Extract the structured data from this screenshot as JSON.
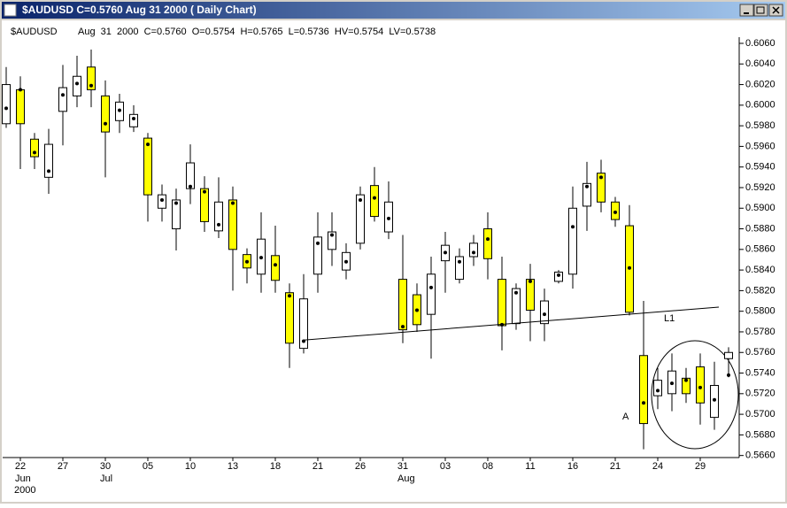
{
  "window": {
    "title": "$AUDUSD      C=0.5760 Aug  31  2000 (  Daily Chart)"
  },
  "chart_data": {
    "type": "candlestick",
    "symbol": "$AUDUSD",
    "info": "Aug  31  2000  C=0.5760  O=0.5754  H=0.5765  L=0.5736  HV=0.5754  LV=0.5738",
    "categories": [
      null,
      "22",
      null,
      null,
      "27",
      null,
      null,
      "30",
      null,
      null,
      "05",
      null,
      null,
      "10",
      null,
      null,
      "13",
      null,
      null,
      "18",
      null,
      null,
      "21",
      null,
      null,
      "26",
      null,
      null,
      "31",
      null,
      null,
      "03",
      null,
      null,
      "08",
      null,
      null,
      "11",
      null,
      null,
      "16",
      null,
      null,
      "21",
      null,
      null,
      "24",
      null,
      null,
      "29",
      null,
      null
    ],
    "x_sublabels": [
      null,
      "Jun",
      null,
      null,
      null,
      null,
      null,
      "Jul",
      null,
      null,
      null,
      null,
      null,
      null,
      null,
      null,
      null,
      null,
      null,
      null,
      null,
      null,
      null,
      null,
      null,
      null,
      null,
      null,
      "Aug",
      null,
      null,
      null,
      null,
      null,
      null,
      null,
      null,
      null,
      null,
      null,
      null,
      null,
      null,
      null,
      null,
      null,
      null,
      null,
      null,
      null,
      null,
      null
    ],
    "x_year": "2000",
    "open": [
      0.5982,
      0.6015,
      0.5967,
      0.593,
      0.5994,
      0.6009,
      0.6037,
      0.6009,
      0.5985,
      0.5979,
      0.5968,
      0.59,
      0.588,
      0.5919,
      0.5919,
      0.5878,
      0.5908,
      0.5855,
      0.5836,
      0.5854,
      0.5818,
      0.5764,
      0.5836,
      0.586,
      0.584,
      0.5866,
      0.5922,
      0.5877,
      0.5831,
      0.5816,
      0.5797,
      0.5849,
      0.5831,
      0.5853,
      0.588,
      0.5831,
      0.5788,
      0.5831,
      0.5788,
      0.5829,
      0.5836,
      0.5902,
      0.5934,
      0.5906,
      0.5883,
      0.5757,
      0.5718,
      0.572,
      0.5735,
      0.5746,
      0.5697,
      0.5754
    ],
    "high": [
      0.6037,
      0.6028,
      0.5973,
      0.5977,
      0.6039,
      0.6048,
      0.6054,
      0.6024,
      0.6011,
      0.6,
      0.5973,
      0.5923,
      0.5919,
      0.5962,
      0.5931,
      0.593,
      0.5921,
      0.5861,
      0.5896,
      0.5883,
      0.5827,
      0.5836,
      0.5896,
      0.5896,
      0.5866,
      0.5921,
      0.594,
      0.5926,
      0.5874,
      0.5827,
      0.5853,
      0.5877,
      0.5861,
      0.5874,
      0.5896,
      0.5853,
      0.5827,
      0.5846,
      0.5822,
      0.584,
      0.5921,
      0.5945,
      0.5947,
      0.5911,
      0.5903,
      0.581,
      0.5745,
      0.5759,
      0.5745,
      0.5759,
      0.5751,
      0.5765
    ],
    "low": [
      0.5978,
      0.5938,
      0.5938,
      0.5914,
      0.5961,
      0.5998,
      0.5998,
      0.593,
      0.5973,
      0.5974,
      0.5887,
      0.5887,
      0.5859,
      0.5904,
      0.5877,
      0.5871,
      0.582,
      0.5827,
      0.5818,
      0.5818,
      0.5745,
      0.5759,
      0.5818,
      0.5844,
      0.5831,
      0.586,
      0.5887,
      0.587,
      0.5769,
      0.578,
      0.5754,
      0.5818,
      0.5827,
      0.5844,
      0.5831,
      0.5762,
      0.5782,
      0.5771,
      0.5771,
      0.5827,
      0.5822,
      0.5878,
      0.5896,
      0.5882,
      0.5796,
      0.5666,
      0.5705,
      0.5703,
      0.5711,
      0.569,
      0.5685,
      0.5736
    ],
    "close": [
      0.602,
      0.5982,
      0.595,
      0.5962,
      0.6017,
      0.6028,
      0.6015,
      0.5974,
      0.6003,
      0.5991,
      0.5913,
      0.5913,
      0.5908,
      0.5944,
      0.5887,
      0.5906,
      0.586,
      0.5842,
      0.587,
      0.583,
      0.5769,
      0.5812,
      0.5872,
      0.5877,
      0.5857,
      0.5913,
      0.5892,
      0.5906,
      0.5782,
      0.5787,
      0.5836,
      0.5864,
      0.5853,
      0.5866,
      0.5851,
      0.5786,
      0.5822,
      0.5801,
      0.581,
      0.5838,
      0.59,
      0.5924,
      0.5906,
      0.5889,
      0.5799,
      0.5691,
      0.5733,
      0.5742,
      0.572,
      0.5711,
      0.5728,
      0.576
    ],
    "dots": [
      0.5997,
      0.6015,
      0.5954,
      0.5936,
      0.601,
      0.6021,
      0.6019,
      0.5982,
      0.5995,
      0.5987,
      0.5962,
      0.5908,
      0.5905,
      0.5921,
      0.5916,
      0.5884,
      0.5905,
      0.5848,
      0.5852,
      0.5845,
      0.5815,
      0.5771,
      0.5866,
      0.5874,
      0.5848,
      0.5908,
      0.591,
      0.589,
      0.5785,
      0.5801,
      0.5823,
      0.5857,
      0.5848,
      0.5857,
      0.587,
      0.5787,
      0.5818,
      0.5829,
      0.5797,
      0.5835,
      0.5882,
      0.5921,
      0.593,
      0.5896,
      0.5842,
      0.5711,
      0.5723,
      0.573,
      0.5733,
      0.5726,
      0.5714,
      0.5738
    ],
    "up_color": "#ffffff",
    "down_color": "#ffff00",
    "trendline": {
      "label": "L1",
      "values": [
        0.5772,
        0.5804
      ]
    },
    "annotation": "A",
    "ylim": [
      0.5658,
      0.6066
    ],
    "yticks": [
      {
        "value": 0.566,
        "label": "0.5660"
      },
      {
        "value": 0.568,
        "label": "0.5680"
      },
      {
        "value": 0.57,
        "label": "0.5700"
      },
      {
        "value": 0.572,
        "label": "0.5720"
      },
      {
        "value": 0.574,
        "label": "0.5740"
      },
      {
        "value": 0.576,
        "label": "0.5760"
      },
      {
        "value": 0.578,
        "label": "0.5780"
      },
      {
        "value": 0.58,
        "label": "0.5800"
      },
      {
        "value": 0.582,
        "label": "0.5820"
      },
      {
        "value": 0.584,
        "label": "0.5840"
      },
      {
        "value": 0.586,
        "label": "0.5860"
      },
      {
        "value": 0.588,
        "label": "0.5880"
      },
      {
        "value": 0.59,
        "label": "0.5900"
      },
      {
        "value": 0.592,
        "label": "0.5920"
      },
      {
        "value": 0.594,
        "label": "0.5940"
      },
      {
        "value": 0.596,
        "label": "0.5960"
      },
      {
        "value": 0.598,
        "label": "0.5980"
      },
      {
        "value": 0.6,
        "label": "0.6000"
      },
      {
        "value": 0.602,
        "label": "0.6020"
      },
      {
        "value": 0.604,
        "label": "0.6040"
      },
      {
        "value": 0.606,
        "label": "0.6060"
      }
    ]
  }
}
